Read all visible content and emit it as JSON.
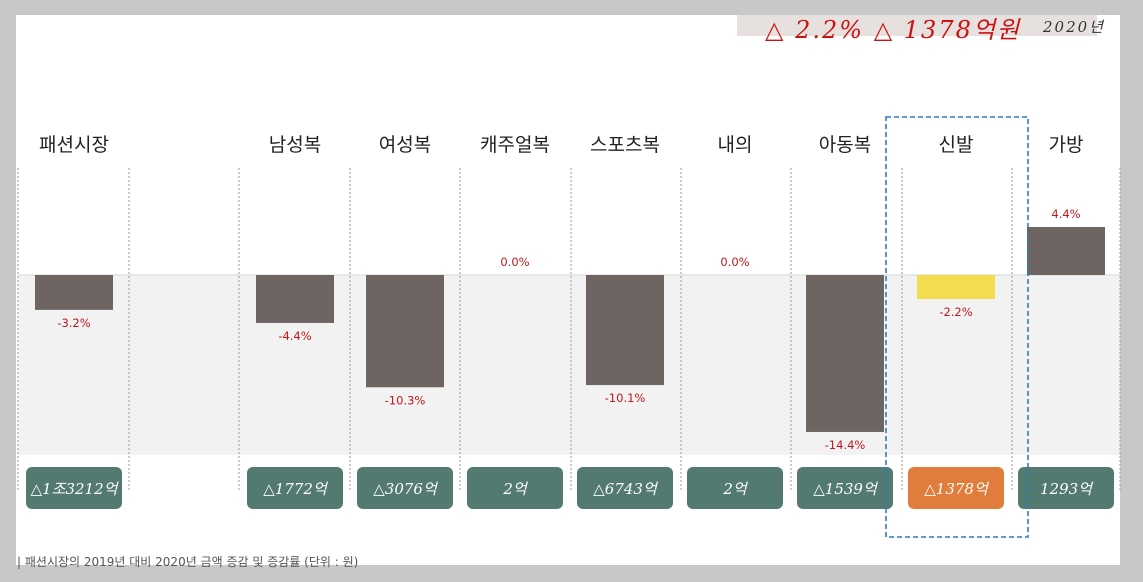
{
  "banner": {
    "headline": "△ 2.2%  △ 1378억원",
    "year": "2020년"
  },
  "caption": "| 패션시장의 2019년 대비 2020년 금액 증감 및 증감률      (단위 : 원)",
  "chart_data": {
    "type": "bar",
    "categories": [
      "패션시장",
      "남성복",
      "여성복",
      "캐주얼복",
      "스포츠복",
      "내의",
      "아동복",
      "신발",
      "가방"
    ],
    "values": [
      -3.2,
      -4.4,
      -10.3,
      0.0,
      -10.1,
      0.0,
      -14.4,
      -2.2,
      4.4
    ],
    "value_labels": [
      "-3.2%",
      "-4.4%",
      "-10.3%",
      "0.0%",
      "-10.1%",
      "0.0%",
      "-14.4%",
      "-2.2%",
      "4.4%"
    ],
    "amount_labels": [
      "△1조3212억",
      "△1772억",
      "△3076억",
      "2억",
      "△6743억",
      "2억",
      "△1539억",
      "△1378억",
      "1293억"
    ],
    "highlight_category": "신발",
    "colors": {
      "bar": "#6e6563",
      "highlight_bar": "#f3dd4e",
      "amount_box": "#537a70",
      "highlight_box": "#e07d3c",
      "value_text": "#c0181e",
      "negative_band": "#f2f2f2",
      "dashed_frame": "#2a7fc4"
    }
  }
}
